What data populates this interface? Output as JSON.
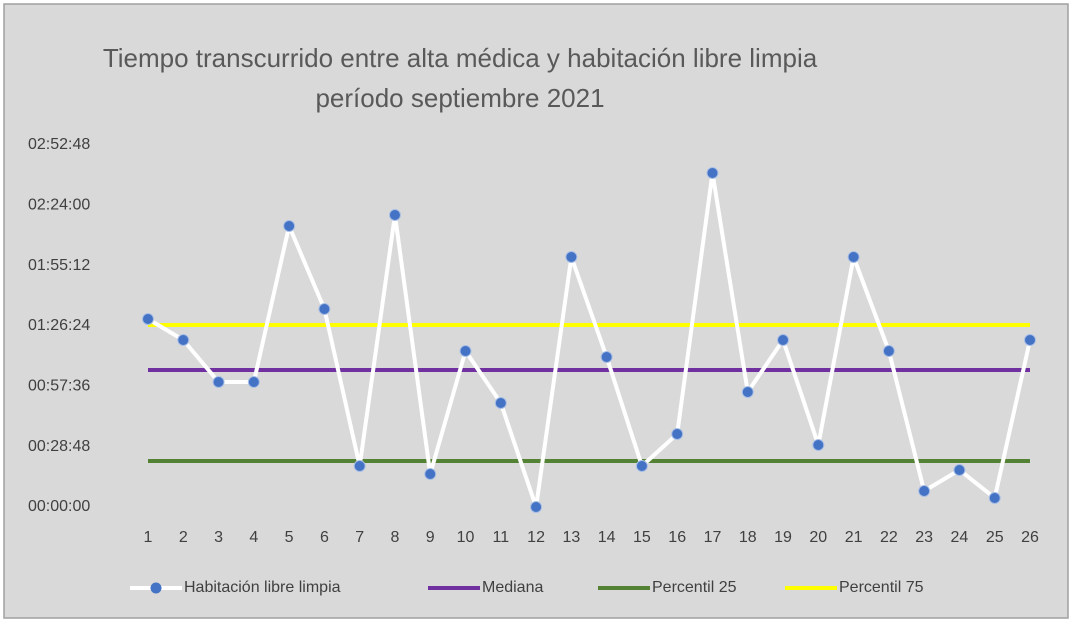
{
  "chart_data": {
    "type": "line",
    "title": "Tiempo transcurrido entre alta médica y habitación libre limpia período septiembre 2021",
    "categories": [
      "1",
      "2",
      "3",
      "4",
      "5",
      "6",
      "7",
      "8",
      "9",
      "10",
      "11",
      "12",
      "13",
      "14",
      "15",
      "16",
      "17",
      "18",
      "19",
      "20",
      "21",
      "22",
      "23",
      "24",
      "25",
      "26"
    ],
    "series": [
      {
        "name": "Habitación libre limpia",
        "color": "#ffffff",
        "marker_color": "#4472c4",
        "values": [
          5385,
          4783,
          3580,
          3580,
          8048,
          5671,
          1174,
          8363,
          945,
          4468,
          2979,
          0,
          7160,
          4296,
          1174,
          2091,
          9566,
          3294,
          4783,
          1776,
          7160,
          4468,
          458,
          1060,
          258,
          4783
        ]
      },
      {
        "name": "Mediana",
        "color": "#7030a0",
        "values": [
          3924,
          3924,
          3924,
          3924,
          3924,
          3924,
          3924,
          3924,
          3924,
          3924,
          3924,
          3924,
          3924,
          3924,
          3924,
          3924,
          3924,
          3924,
          3924,
          3924,
          3924,
          3924,
          3924,
          3924,
          3924,
          3924
        ]
      },
      {
        "name": "Percentil 25",
        "color": "#548235",
        "values": [
          1317,
          1317,
          1317,
          1317,
          1317,
          1317,
          1317,
          1317,
          1317,
          1317,
          1317,
          1317,
          1317,
          1317,
          1317,
          1317,
          1317,
          1317,
          1317,
          1317,
          1317,
          1317,
          1317,
          1317,
          1317,
          1317
        ]
      },
      {
        "name": "Percentil 75",
        "color": "#ffff00",
        "values": [
          5212,
          5212,
          5212,
          5212,
          5212,
          5212,
          5212,
          5212,
          5212,
          5212,
          5212,
          5212,
          5212,
          5212,
          5212,
          5212,
          5212,
          5212,
          5212,
          5212,
          5212,
          5212,
          5212,
          5212,
          5212,
          5212
        ]
      }
    ],
    "ylim": [
      0,
      10368
    ],
    "yticks": [
      {
        "value": 0,
        "label": "00:00:00"
      },
      {
        "value": 1728,
        "label": "00:28:48"
      },
      {
        "value": 3456,
        "label": "00:57:36"
      },
      {
        "value": 5184,
        "label": "01:26:24"
      },
      {
        "value": 6912,
        "label": "01:55:12"
      },
      {
        "value": 8640,
        "label": "02:24:00"
      },
      {
        "value": 10368,
        "label": "02:52:48"
      }
    ],
    "grid": false,
    "legend": "bottom"
  }
}
